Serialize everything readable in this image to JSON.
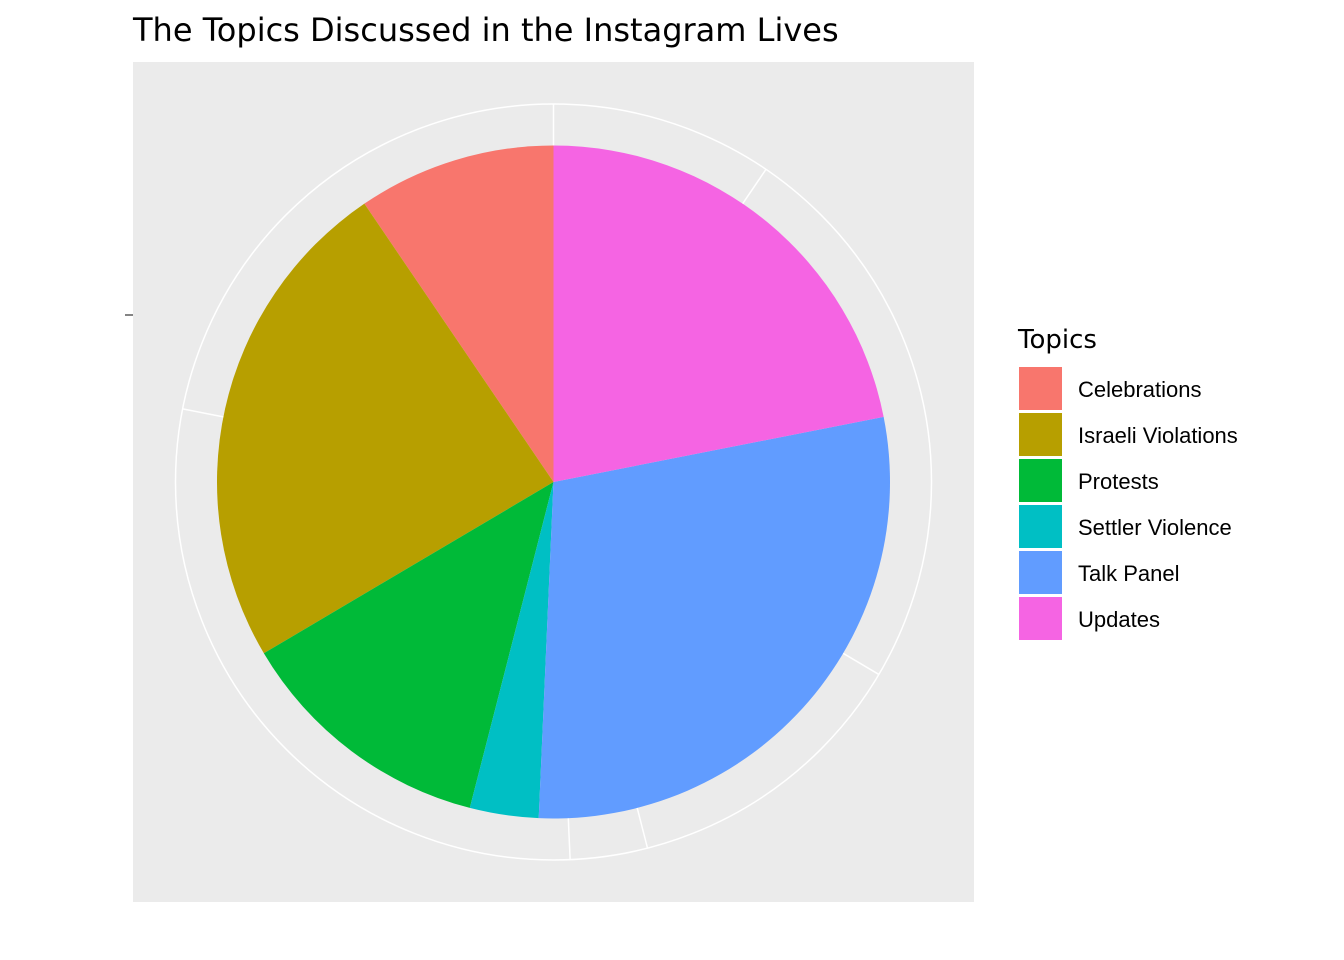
{
  "chart_data": {
    "type": "pie",
    "title": "The Topics Discussed in the Instagram Lives",
    "legend_title": "Topics",
    "legend_position": "right",
    "categories": [
      "Celebrations",
      "Israeli Violations",
      "Protests",
      "Settler Violence",
      "Talk Panel",
      "Updates"
    ],
    "values": [
      9.5,
      24.0,
      12.5,
      3.3,
      28.8,
      21.9
    ],
    "colors": [
      "#F8766D",
      "#B79F00",
      "#00BA38",
      "#00BFC4",
      "#619CFF",
      "#F564E3"
    ],
    "panel_background": "#EBEBEB",
    "grid_color": "#FFFFFF",
    "grid": true
  }
}
